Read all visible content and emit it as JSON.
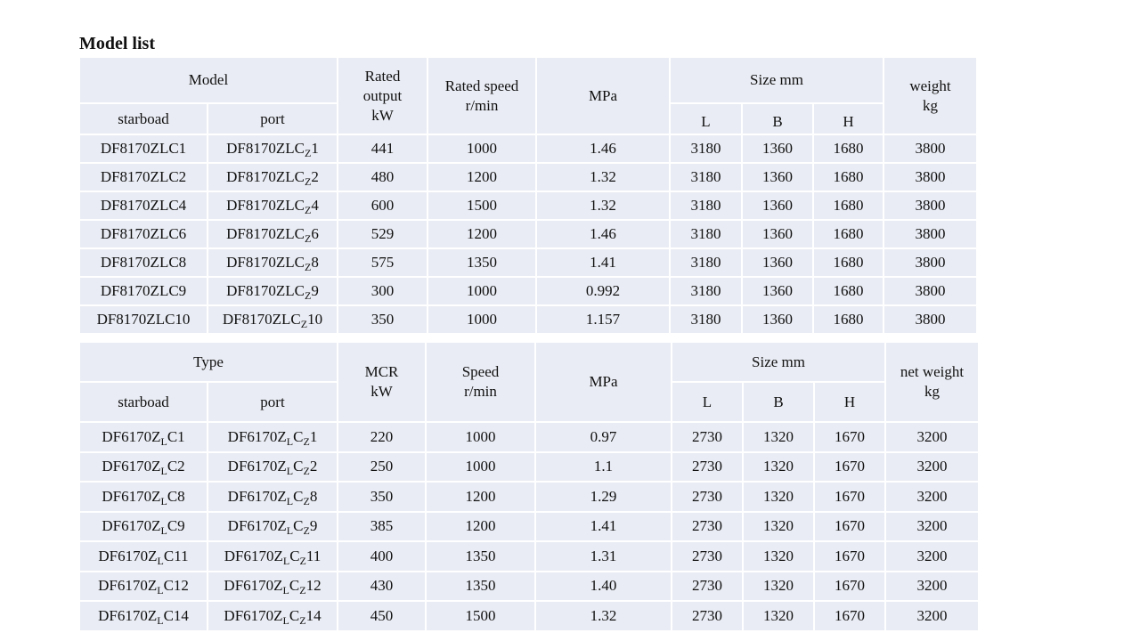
{
  "title": "Model list",
  "tables": [
    {
      "header": {
        "group": "Model",
        "starboard": "starboad",
        "port": "port",
        "output": [
          "Rated",
          "output",
          "kW"
        ],
        "speed": [
          "Rated speed",
          "r/min"
        ],
        "pressure": "MPa",
        "size": "Size mm",
        "l": "L",
        "b": "B",
        "h": "H",
        "weight": [
          "weight",
          "kg"
        ]
      },
      "rows": [
        [
          [
            "DF8170ZLC1"
          ],
          [
            "DF8170ZLC",
            "Z",
            "1"
          ],
          "441",
          "1000",
          "1.46",
          "3180",
          "1360",
          "1680",
          "3800"
        ],
        [
          [
            "DF8170ZLC2"
          ],
          [
            "DF8170ZLC",
            "Z",
            "2"
          ],
          "480",
          "1200",
          "1.32",
          "3180",
          "1360",
          "1680",
          "3800"
        ],
        [
          [
            "DF8170ZLC4"
          ],
          [
            "DF8170ZLC",
            "Z",
            "4"
          ],
          "600",
          "1500",
          "1.32",
          "3180",
          "1360",
          "1680",
          "3800"
        ],
        [
          [
            "DF8170ZLC6"
          ],
          [
            "DF8170ZLC",
            "Z",
            "6"
          ],
          "529",
          "1200",
          "1.46",
          "3180",
          "1360",
          "1680",
          "3800"
        ],
        [
          [
            "DF8170ZLC8"
          ],
          [
            "DF8170ZLC",
            "Z",
            "8"
          ],
          "575",
          "1350",
          "1.41",
          "3180",
          "1360",
          "1680",
          "3800"
        ],
        [
          [
            "DF8170ZLC9"
          ],
          [
            "DF8170ZLC",
            "Z",
            "9"
          ],
          "300",
          "1000",
          "0.992",
          "3180",
          "1360",
          "1680",
          "3800"
        ],
        [
          [
            "DF8170ZLC10"
          ],
          [
            "DF8170ZLC",
            "Z",
            "10"
          ],
          "350",
          "1000",
          "1.157",
          "3180",
          "1360",
          "1680",
          "3800"
        ]
      ]
    },
    {
      "header": {
        "group": "Type",
        "starboard": "starboad",
        "port": "port",
        "output": [
          "MCR",
          "kW"
        ],
        "speed": [
          "Speed",
          "r/min"
        ],
        "pressure": "MPa",
        "size": "Size mm",
        "l": "L",
        "b": "B",
        "h": "H",
        "weight": [
          "net weight",
          "kg"
        ]
      },
      "rows": [
        [
          [
            "DF6170Z",
            "L",
            "C1"
          ],
          [
            "DF6170Z",
            "L",
            "C",
            "Z",
            "1"
          ],
          "220",
          "1000",
          "0.97",
          "2730",
          "1320",
          "1670",
          "3200"
        ],
        [
          [
            "DF6170Z",
            "L",
            "C2"
          ],
          [
            "DF6170Z",
            "L",
            "C",
            "Z",
            "2"
          ],
          "250",
          "1000",
          "1.1",
          "2730",
          "1320",
          "1670",
          "3200"
        ],
        [
          [
            "DF6170Z",
            "L",
            "C8"
          ],
          [
            "DF6170Z",
            "L",
            "C",
            "Z",
            "8"
          ],
          "350",
          "1200",
          "1.29",
          "2730",
          "1320",
          "1670",
          "3200"
        ],
        [
          [
            "DF6170Z",
            "L",
            "C9"
          ],
          [
            "DF6170Z",
            "L",
            "C",
            "Z",
            "9"
          ],
          "385",
          "1200",
          "1.41",
          "2730",
          "1320",
          "1670",
          "3200"
        ],
        [
          [
            "DF6170Z",
            "L",
            "C11"
          ],
          [
            "DF6170Z",
            "L",
            "C",
            "Z",
            "11"
          ],
          "400",
          "1350",
          "1.31",
          "2730",
          "1320",
          "1670",
          "3200"
        ],
        [
          [
            "DF6170Z",
            "L",
            "C12"
          ],
          [
            "DF6170Z",
            "L",
            "C",
            "Z",
            "12"
          ],
          "430",
          "1350",
          "1.40",
          "2730",
          "1320",
          "1670",
          "3200"
        ],
        [
          [
            "DF6170Z",
            "L",
            "C14"
          ],
          [
            "DF6170Z",
            "L",
            "C",
            "Z",
            "14"
          ],
          "450",
          "1500",
          "1.32",
          "2730",
          "1320",
          "1670",
          "3200"
        ]
      ]
    }
  ]
}
